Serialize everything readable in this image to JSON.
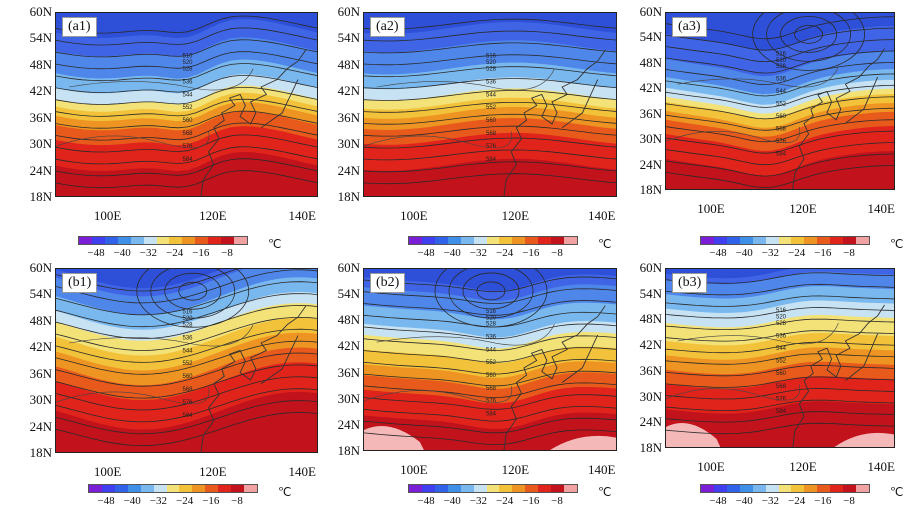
{
  "panels": [
    {
      "id": "a1",
      "label": "(a1)",
      "trough_kind": "deep",
      "ridge_shift": 0
    },
    {
      "id": "a2",
      "label": "(a2)",
      "trough_kind": "shallow",
      "ridge_shift": 1
    },
    {
      "id": "a3",
      "label": "(a3)",
      "trough_kind": "cold_north",
      "ridge_shift": 0
    },
    {
      "id": "b1",
      "label": "(b1)",
      "trough_kind": "cutoff_west",
      "ridge_shift": 0
    },
    {
      "id": "b2",
      "label": "(b2)",
      "trough_kind": "cutoff_center",
      "ridge_shift": 0
    },
    {
      "id": "b3",
      "label": "(b3)",
      "trough_kind": "warm",
      "ridge_shift": 0
    }
  ],
  "lat_labels": [
    "60N",
    "54N",
    "48N",
    "42N",
    "36N",
    "30N",
    "24N",
    "18N"
  ],
  "lon_labels": [
    "100E",
    "120E",
    "140E"
  ],
  "colorbar": {
    "ticks": [
      "−48",
      "−40",
      "−32",
      "−24",
      "−16",
      "−8"
    ],
    "unit": "℃",
    "colors": [
      "#7a1fd6",
      "#3f3ff0",
      "#2f62e8",
      "#3f8fe8",
      "#79b8ee",
      "#c7e2f3",
      "#f3e277",
      "#f2c23a",
      "#ee9422",
      "#e85a1c",
      "#e0241b",
      "#c2121b",
      "#f0a2a2"
    ]
  },
  "contour_labels": [
    "516",
    "520",
    "528",
    "532",
    "536",
    "540",
    "544",
    "548",
    "552",
    "556",
    "560",
    "564",
    "568",
    "572",
    "576",
    "580",
    "584",
    "588"
  ]
}
